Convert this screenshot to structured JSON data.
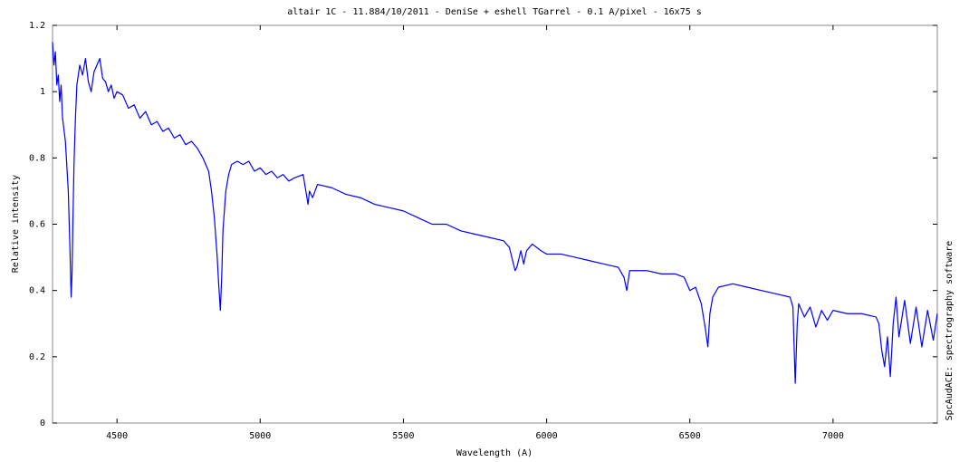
{
  "chart_data": {
    "type": "line",
    "title": "altair 1C - 11.884/10/2011 - DeniSe + eshell TGarrel - 0.1 A/pixel - 16x75 s",
    "x_label": "Wavelength (A)",
    "y_label": "Relative intensity",
    "side_note": "SpcAudACE: spectrography software",
    "color": "#0000ff",
    "xlim": [
      4275,
      7364
    ],
    "ylim": [
      0,
      1.2
    ],
    "xticks": [
      4500,
      5000,
      5500,
      6000,
      6500,
      7000
    ],
    "yticks": [
      0,
      0.2,
      0.4,
      0.6,
      0.8,
      1,
      1.2
    ],
    "x": [
      4275,
      4280,
      4285,
      4290,
      4295,
      4300,
      4305,
      4310,
      4320,
      4330,
      4335,
      4338,
      4340,
      4343,
      4346,
      4350,
      4355,
      4360,
      4370,
      4380,
      4390,
      4400,
      4410,
      4420,
      4430,
      4440,
      4450,
      4460,
      4470,
      4480,
      4490,
      4500,
      4520,
      4540,
      4560,
      4580,
      4600,
      4620,
      4640,
      4660,
      4680,
      4700,
      4720,
      4740,
      4760,
      4780,
      4800,
      4820,
      4830,
      4840,
      4850,
      4855,
      4861,
      4866,
      4870,
      4880,
      4890,
      4900,
      4920,
      4940,
      4960,
      4980,
      5000,
      5020,
      5040,
      5060,
      5080,
      5100,
      5120,
      5150,
      5167,
      5172,
      5183,
      5200,
      5250,
      5300,
      5350,
      5400,
      5450,
      5500,
      5550,
      5600,
      5650,
      5700,
      5750,
      5800,
      5850,
      5870,
      5890,
      5896,
      5910,
      5920,
      5930,
      5950,
      5980,
      6000,
      6050,
      6100,
      6150,
      6200,
      6250,
      6270,
      6280,
      6290,
      6350,
      6400,
      6450,
      6480,
      6500,
      6520,
      6540,
      6555,
      6563,
      6570,
      6580,
      6600,
      6650,
      6700,
      6750,
      6800,
      6850,
      6860,
      6868,
      6875,
      6880,
      6900,
      6920,
      6940,
      6960,
      6980,
      7000,
      7050,
      7100,
      7150,
      7160,
      7170,
      7180,
      7190,
      7200,
      7210,
      7220,
      7230,
      7250,
      7270,
      7290,
      7310,
      7330,
      7350,
      7364
    ],
    "values": [
      1.15,
      1.08,
      1.12,
      1.02,
      1.05,
      0.97,
      1.02,
      0.92,
      0.85,
      0.7,
      0.55,
      0.45,
      0.38,
      0.45,
      0.6,
      0.78,
      0.92,
      1.02,
      1.08,
      1.05,
      1.1,
      1.03,
      1.0,
      1.06,
      1.08,
      1.1,
      1.04,
      1.03,
      1.0,
      1.02,
      0.98,
      1.0,
      0.99,
      0.95,
      0.96,
      0.92,
      0.94,
      0.9,
      0.91,
      0.88,
      0.89,
      0.86,
      0.87,
      0.84,
      0.85,
      0.83,
      0.8,
      0.76,
      0.7,
      0.62,
      0.5,
      0.42,
      0.34,
      0.45,
      0.58,
      0.7,
      0.75,
      0.78,
      0.79,
      0.78,
      0.79,
      0.76,
      0.77,
      0.75,
      0.76,
      0.74,
      0.75,
      0.73,
      0.74,
      0.75,
      0.66,
      0.7,
      0.68,
      0.72,
      0.71,
      0.69,
      0.68,
      0.66,
      0.65,
      0.64,
      0.62,
      0.6,
      0.6,
      0.58,
      0.57,
      0.56,
      0.55,
      0.53,
      0.46,
      0.47,
      0.52,
      0.48,
      0.52,
      0.54,
      0.52,
      0.51,
      0.51,
      0.5,
      0.49,
      0.48,
      0.47,
      0.44,
      0.4,
      0.46,
      0.46,
      0.45,
      0.45,
      0.44,
      0.4,
      0.41,
      0.36,
      0.28,
      0.23,
      0.33,
      0.38,
      0.41,
      0.42,
      0.41,
      0.4,
      0.39,
      0.38,
      0.35,
      0.12,
      0.3,
      0.36,
      0.32,
      0.35,
      0.29,
      0.34,
      0.31,
      0.34,
      0.33,
      0.33,
      0.32,
      0.3,
      0.22,
      0.17,
      0.26,
      0.14,
      0.3,
      0.38,
      0.26,
      0.37,
      0.24,
      0.35,
      0.23,
      0.34,
      0.25,
      0.33
    ]
  }
}
